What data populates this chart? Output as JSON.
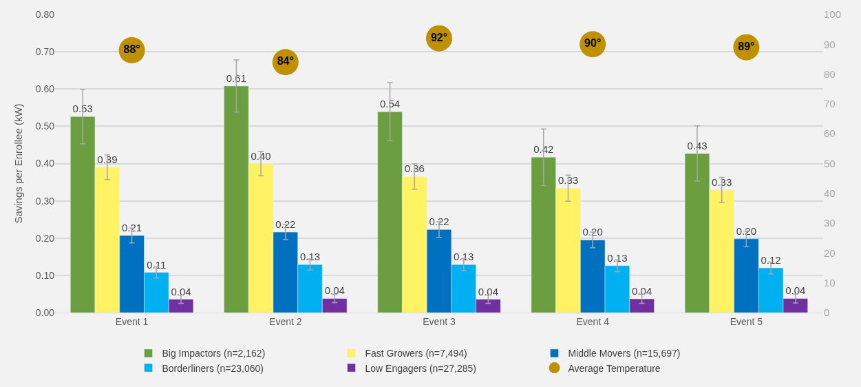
{
  "chart_data": {
    "type": "bar",
    "ylabel": "Savings per Enrollee (kW)",
    "categories": [
      "Event 1",
      "Event 2",
      "Event 3",
      "Event 4",
      "Event 5"
    ],
    "series": [
      {
        "name": "Big Impactors (n=2,162)",
        "color": "#6a9e3f",
        "values": [
          0.526,
          0.608,
          0.539,
          0.417,
          0.427
        ],
        "errors": [
          0.073,
          0.07,
          0.078,
          0.076,
          0.074
        ],
        "value_labels": [
          "0.53",
          "0.61",
          "0.54",
          "0.42",
          "0.43"
        ]
      },
      {
        "name": "Fast Growers (n=7,494)",
        "color": "#fff263",
        "values": [
          0.39,
          0.4,
          0.365,
          0.334,
          0.329
        ],
        "errors": [
          0.033,
          0.033,
          0.034,
          0.035,
          0.034
        ],
        "value_labels": [
          "0.39",
          "0.40",
          "0.36",
          "0.33",
          "0.33"
        ]
      },
      {
        "name": "Middle Movers (n=15,697)",
        "color": "#0070c0",
        "values": [
          0.207,
          0.216,
          0.223,
          0.195,
          0.198
        ],
        "errors": [
          0.02,
          0.02,
          0.021,
          0.021,
          0.021
        ],
        "value_labels": [
          "0.21",
          "0.22",
          "0.22",
          "0.20",
          "0.20"
        ]
      },
      {
        "name": "Borderliners (n=23,060)",
        "color": "#00b0f0",
        "values": [
          0.108,
          0.129,
          0.129,
          0.126,
          0.12
        ],
        "errors": [
          0.015,
          0.015,
          0.016,
          0.016,
          0.016
        ],
        "value_labels": [
          "0.11",
          "0.13",
          "0.13",
          "0.13",
          "0.12"
        ]
      },
      {
        "name": "Low Engagers (n=27,285)",
        "color": "#7030a0",
        "values": [
          0.036,
          0.038,
          0.036,
          0.037,
          0.038
        ],
        "errors": [
          0.011,
          0.011,
          0.011,
          0.012,
          0.012
        ],
        "value_labels": [
          "0.04",
          "0.04",
          "0.04",
          "0.04",
          "0.04"
        ]
      },
      {
        "name": "Average Temperature",
        "type": "scatter",
        "axis": "y2",
        "marker": "circle",
        "color": "#bf9000",
        "values": [
          88,
          84,
          92,
          90,
          89
        ],
        "value_labels": [
          "88°",
          "84°",
          "92°",
          "90°",
          "89°"
        ]
      }
    ],
    "ylim": [
      0,
      0.8
    ],
    "yticks": [
      {
        "value": 0,
        "label": "0.00"
      },
      {
        "value": 0.1,
        "label": "0.10"
      },
      {
        "value": 0.2,
        "label": "0.20"
      },
      {
        "value": 0.3,
        "label": "0.30"
      },
      {
        "value": 0.4,
        "label": "0.40"
      },
      {
        "value": 0.5,
        "label": "0.50"
      },
      {
        "value": 0.6,
        "label": "0.60"
      },
      {
        "value": 0.7,
        "label": "0.70"
      },
      {
        "value": 0.8,
        "label": "0.80"
      }
    ],
    "y2lim": [
      0,
      100
    ],
    "y2ticks": [
      0,
      10,
      20,
      30,
      40,
      50,
      60,
      70,
      80,
      90,
      100
    ],
    "grid": "y",
    "legend": "bottom"
  }
}
